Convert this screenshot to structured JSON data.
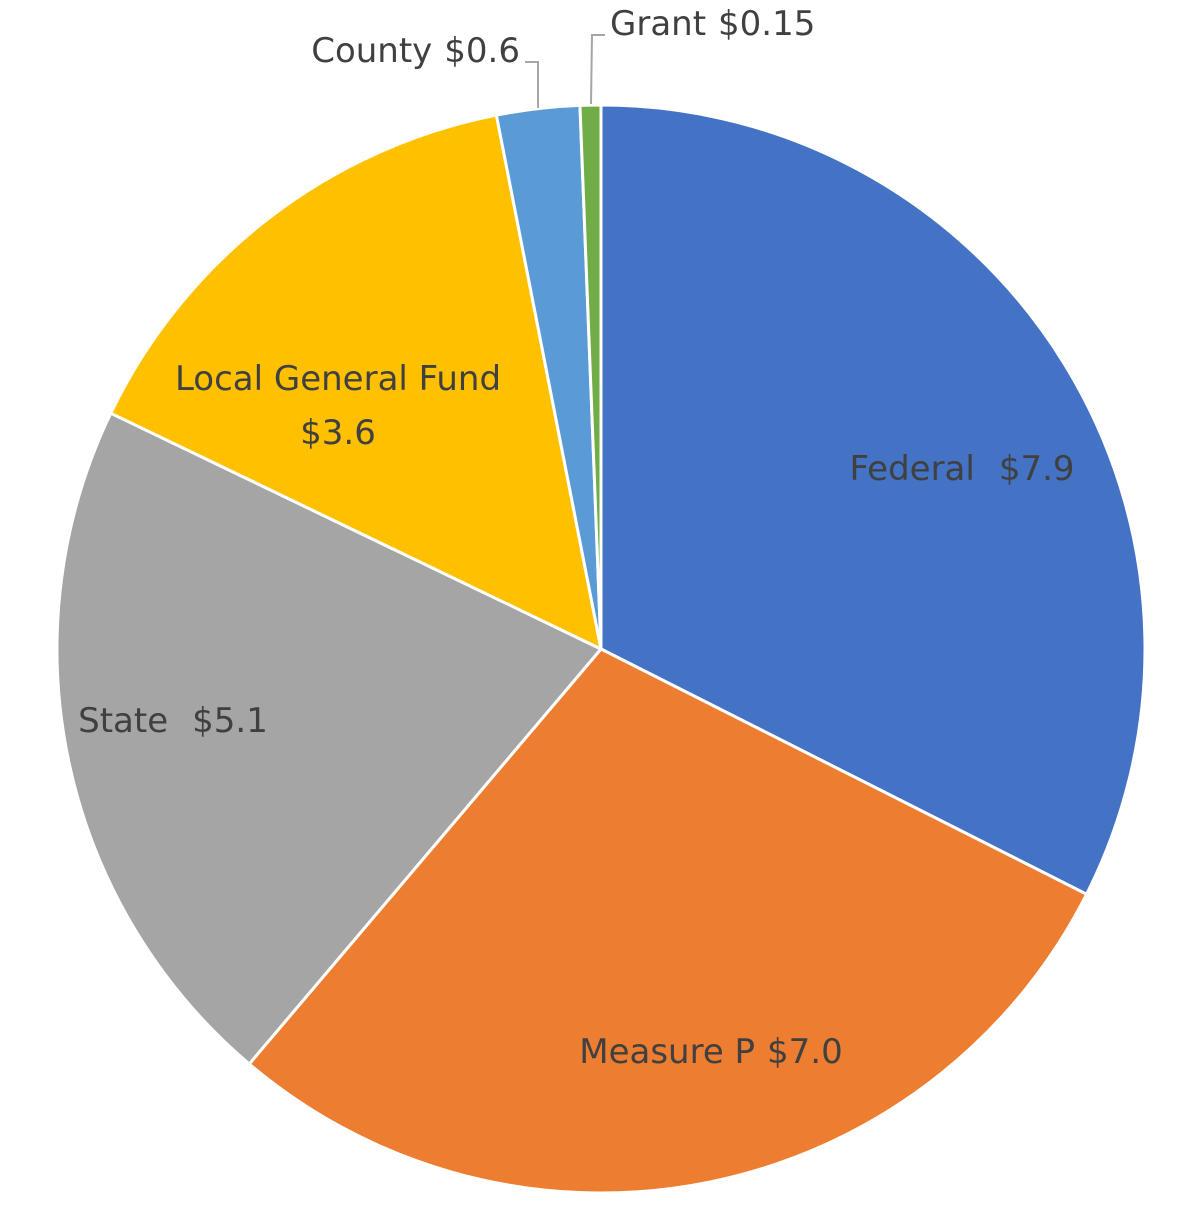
{
  "chart_data": {
    "type": "pie",
    "categories": [
      "Federal",
      "Measure P",
      "State",
      "Local General Fund",
      "County",
      "Grant"
    ],
    "values": [
      7.9,
      7.0,
      5.1,
      3.6,
      0.6,
      0.15
    ],
    "value_labels": [
      "$7.9",
      "$7.0",
      "$5.1",
      "$3.6",
      "$0.6",
      "$0.15"
    ],
    "colors": [
      "#4472c4",
      "#ed7d31",
      "#a5a5a5",
      "#ffc000",
      "#5b9bd5",
      "#70ad47"
    ]
  }
}
